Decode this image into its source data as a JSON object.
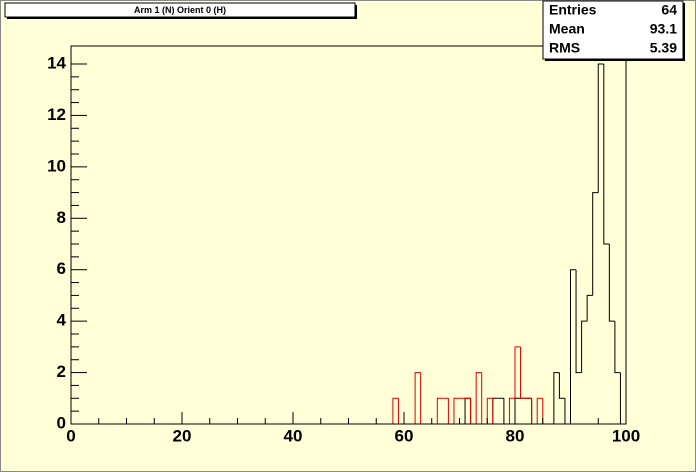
{
  "chart_data": {
    "type": "histogram",
    "title": "Arm 1 (N) Orient 0 (H)",
    "stats": [
      {
        "label": "Entries",
        "value": "64"
      },
      {
        "label": "Mean",
        "value": "93.1"
      },
      {
        "label": "RMS",
        "value": "5.39"
      }
    ],
    "bins": [
      0,
      1,
      2,
      3,
      4,
      5,
      6,
      7,
      8,
      9,
      10,
      11,
      12,
      13,
      14,
      15,
      16,
      17,
      18,
      19,
      20,
      21,
      22,
      23,
      24,
      25,
      26,
      27,
      28,
      29,
      30,
      31,
      32,
      33,
      34,
      35,
      36,
      37,
      38,
      39,
      40,
      41,
      42,
      43,
      44,
      45,
      46,
      47,
      48,
      49,
      50,
      51,
      52,
      53,
      54,
      55,
      56,
      57,
      58,
      59,
      60,
      61,
      62,
      63,
      64,
      65,
      66,
      67,
      68,
      69,
      70,
      71,
      72,
      73,
      74,
      75,
      76,
      77,
      78,
      79,
      80,
      81,
      82,
      83,
      84,
      85,
      86,
      87,
      88,
      89,
      90,
      91,
      92,
      93,
      94,
      95,
      96,
      97,
      98,
      99,
      100
    ],
    "series": [
      {
        "color": "#000000",
        "values": [
          0,
          0,
          0,
          0,
          0,
          0,
          0,
          0,
          0,
          0,
          0,
          0,
          0,
          0,
          0,
          0,
          0,
          0,
          0,
          0,
          0,
          0,
          0,
          0,
          0,
          0,
          0,
          0,
          0,
          0,
          0,
          0,
          0,
          0,
          0,
          0,
          0,
          0,
          0,
          0,
          0,
          0,
          0,
          0,
          0,
          0,
          0,
          0,
          0,
          0,
          0,
          0,
          0,
          0,
          0,
          0,
          0,
          0,
          0,
          0,
          0,
          0,
          0,
          0,
          0,
          0,
          0,
          0,
          0,
          0,
          0,
          1,
          0,
          0,
          0,
          0,
          1,
          1,
          0,
          0,
          1,
          1,
          1,
          0,
          0,
          0,
          0,
          2,
          1,
          0,
          6,
          2,
          4,
          5,
          9,
          14,
          7,
          4,
          2,
          0
        ]
      },
      {
        "color": "#dd0000",
        "values": [
          0,
          0,
          0,
          0,
          0,
          0,
          0,
          0,
          0,
          0,
          0,
          0,
          0,
          0,
          0,
          0,
          0,
          0,
          0,
          0,
          0,
          0,
          0,
          0,
          0,
          0,
          0,
          0,
          0,
          0,
          0,
          0,
          0,
          0,
          0,
          0,
          0,
          0,
          0,
          0,
          0,
          0,
          0,
          0,
          0,
          0,
          0,
          0,
          0,
          0,
          0,
          0,
          0,
          0,
          0,
          0,
          0,
          0,
          1,
          0,
          0,
          0,
          2,
          0,
          0,
          0,
          1,
          1,
          0,
          1,
          1,
          1,
          0,
          2,
          0,
          1,
          0,
          0,
          0,
          1,
          3,
          1,
          1,
          0,
          1,
          0,
          0,
          0,
          0,
          0,
          0,
          0,
          0,
          0,
          0,
          0,
          0,
          0,
          0,
          0
        ]
      }
    ],
    "xlim": [
      0,
      100
    ],
    "xticks": [
      0,
      20,
      40,
      60,
      80,
      100
    ],
    "ylim": [
      0,
      14.7
    ],
    "yticks": [
      0,
      2,
      4,
      6,
      8,
      10,
      12,
      14
    ]
  }
}
